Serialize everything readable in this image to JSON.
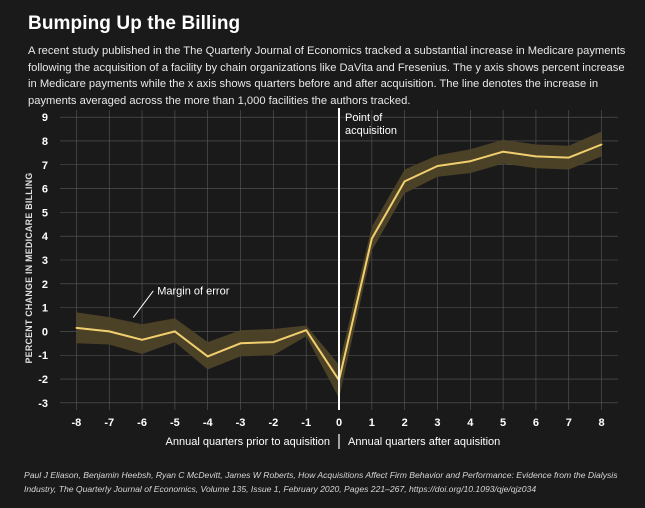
{
  "title": "Bumping Up the Billing",
  "subtitle": "A recent study published in the The Quarterly Journal of Economics tracked a substantial increase in Medicare payments following the acquisition of a facility by chain organizations like DaVita and Fresenius. The y axis shows percent increase in Medicare payments while the x axis shows quarters before and after acquisition. The line denotes the increase in payments averaged across the more than 1,000 facilities the authors tracked.",
  "footnote": "Paul J Eliason, Benjamin Heebsh, Ryan C McDevitt, James W Roberts, How Acquisitions Affect Firm Behavior and Performance: Evidence from the Dialysis Industry, The Quarterly Journal of Economics, Volume 135, Issue 1, February 2020, Pages 221–267, https://doi.org/10.1093/qje/qjz034",
  "colors": {
    "background": "#1a1a1a",
    "line": "#f2cf6e",
    "band": "#4e4328",
    "grid": "#5a5a5a",
    "marker": "#ffffff"
  },
  "chart_data": {
    "type": "line",
    "x": [
      -8,
      -7,
      -6,
      -5,
      -4,
      -3,
      -2,
      -1,
      0,
      1,
      2,
      3,
      4,
      5,
      6,
      7,
      8
    ],
    "series": [
      {
        "name": "Percent change in Medicare billing",
        "values": [
          0.15,
          0.0,
          -0.35,
          0.0,
          -1.05,
          -0.5,
          -0.45,
          0.05,
          -2.05,
          3.9,
          6.3,
          6.95,
          7.15,
          7.55,
          7.35,
          7.3,
          7.85
        ]
      }
    ],
    "margin_of_error": {
      "lower": [
        -0.5,
        -0.55,
        -0.95,
        -0.45,
        -1.6,
        -1.05,
        -1.0,
        -0.2,
        -2.8,
        3.4,
        5.8,
        6.5,
        6.65,
        7.05,
        6.85,
        6.8,
        7.35
      ],
      "upper": [
        0.8,
        0.6,
        0.3,
        0.55,
        -0.45,
        0.05,
        0.1,
        0.25,
        -1.4,
        4.4,
        6.8,
        7.4,
        7.65,
        8.05,
        7.85,
        7.8,
        8.4
      ]
    },
    "xticks": [
      -8,
      -7,
      -6,
      -5,
      -4,
      -3,
      -2,
      -1,
      0,
      1,
      2,
      3,
      4,
      5,
      6,
      7,
      8
    ],
    "yticks": [
      -3,
      -2,
      -1,
      0,
      1,
      2,
      3,
      4,
      5,
      6,
      7,
      8,
      9
    ],
    "xlim": [
      -8.5,
      8.5
    ],
    "ylim": [
      -3.3,
      9.3
    ],
    "grid": true,
    "ylabel": "PERCENT CHANGE IN MEDICARE BILLING",
    "xlabel_before": "Annual quarters prior to aquisition",
    "xlabel_after": "Annual quarters after aquisition",
    "acquisition_label_line1": "Point of",
    "acquisition_label_line2": "acquisition",
    "acquisition_x": 0,
    "margin_label": "Margin of error"
  }
}
